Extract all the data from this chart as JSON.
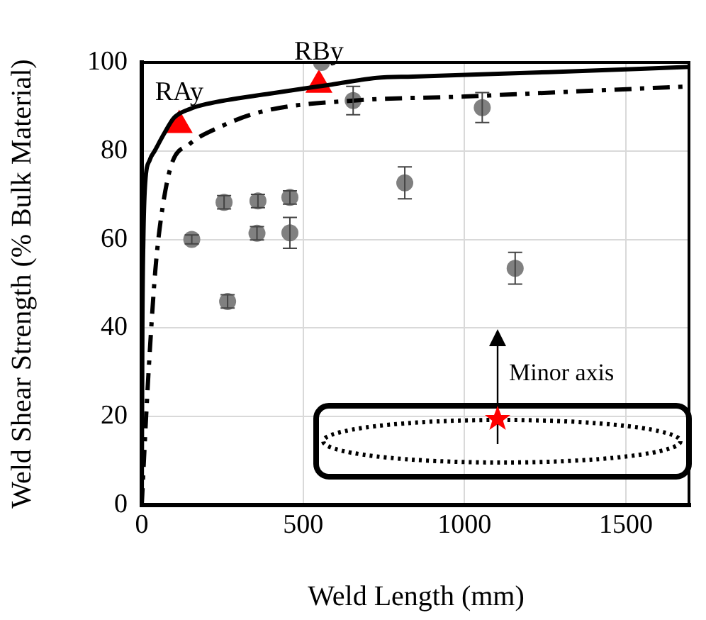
{
  "chart_data": {
    "type": "scatter",
    "xlabel": "Weld Length (mm)",
    "ylabel": "Weld Shear Strength (% Bulk Material)",
    "xlim": [
      0,
      1700
    ],
    "xticks": [
      0,
      500,
      1000,
      1500
    ],
    "ylim": [
      0,
      100
    ],
    "yticks": [
      0,
      20,
      40,
      60,
      80,
      100
    ],
    "grid": true,
    "series": [
      {
        "type": "line",
        "color": "#000000",
        "line_style": "solid",
        "marker": "none",
        "x": [
          0,
          2,
          5,
          10,
          25,
          40,
          70,
          100,
          150,
          200,
          400,
          588,
          728,
          840,
          1260,
          1700
        ],
        "values": [
          0,
          40,
          60,
          72,
          78,
          80,
          84,
          87.5,
          89.5,
          90.6,
          93,
          95,
          96.5,
          96.8,
          97.8,
          99
        ]
      },
      {
        "type": "line",
        "color": "#000000",
        "line_style": "dashdot",
        "marker": "none",
        "x": [
          0,
          10,
          21,
          42,
          60,
          91,
          147,
          238,
          378,
          658,
          1000,
          1300,
          1700
        ],
        "values": [
          0,
          15,
          30,
          53,
          65,
          76.7,
          81.5,
          85.3,
          89,
          91.4,
          92.3,
          93.3,
          94.6
        ]
      },
      {
        "type": "scatter",
        "color": "#808080",
        "marker": "circle",
        "x": [
          155,
          255,
          266,
          360,
          357,
          459,
          459,
          557,
          655,
          815,
          1055,
          1157
        ],
        "values": [
          60,
          68.4,
          46,
          68.7,
          61.4,
          69.5,
          61.5,
          100,
          91.4,
          72.8,
          89.8,
          53.5
        ],
        "errors": [
          1,
          1.5,
          1.5,
          1.5,
          1.5,
          1.5,
          3.5,
          null,
          3.2,
          3.6,
          3.4,
          3.6
        ]
      },
      {
        "type": "scatter",
        "color": "#ff0000",
        "marker": "triangle",
        "x": [
          116,
          549
        ],
        "values": [
          85.8,
          94.9
        ]
      }
    ],
    "annotations": [
      {
        "text": "RAy",
        "x": 116,
        "y": 85.8
      },
      {
        "text": "RBy",
        "x": 549,
        "y": 94.9
      },
      "Minor axis"
    ]
  }
}
